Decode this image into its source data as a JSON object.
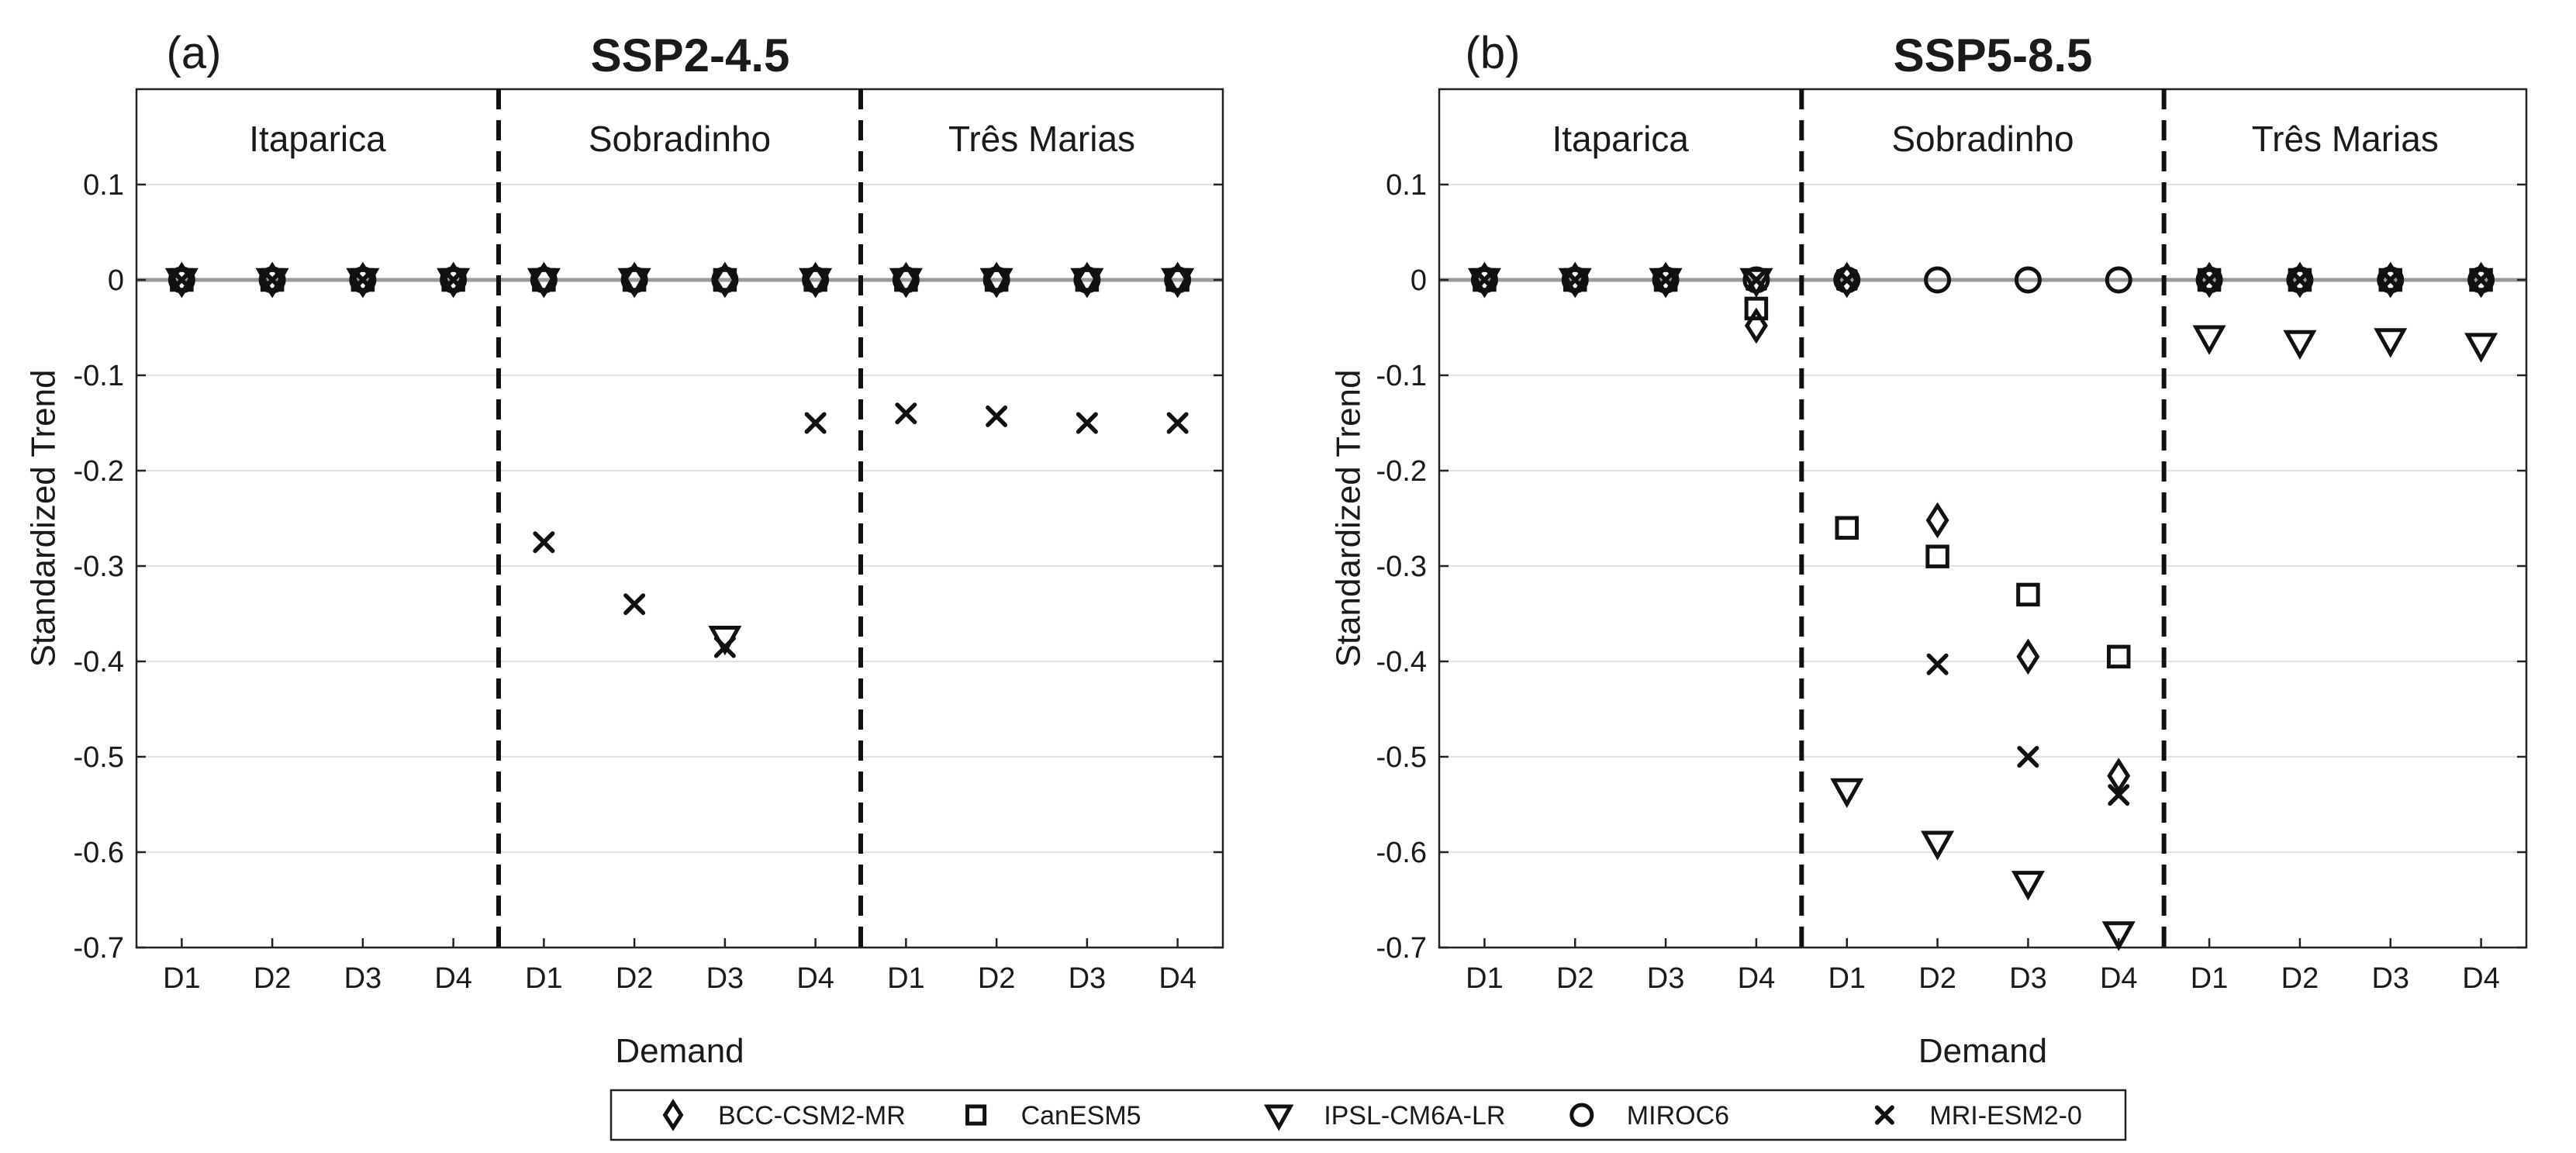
{
  "chart_data": [
    {
      "type": "scatter",
      "panel_label": "(a)",
      "title": "SSP2-4.5",
      "xlabel": "Demand",
      "ylabel": "Standardized Trend",
      "ylim": [
        -0.7,
        0.2
      ],
      "yticks": [
        "0.1",
        "0",
        "-0.1",
        "-0.2",
        "-0.3",
        "-0.4",
        "-0.5",
        "-0.6",
        "-0.7"
      ],
      "grid": true,
      "regions": [
        "Itaparica",
        "Sobradinho",
        "Três Marias"
      ],
      "categories": [
        "D1",
        "D2",
        "D3",
        "D4",
        "D1",
        "D2",
        "D3",
        "D4",
        "D1",
        "D2",
        "D3",
        "D4"
      ],
      "series": [
        {
          "name": "BCC-CSM2-MR",
          "marker": "diamond",
          "values": [
            0,
            0,
            0,
            0,
            0,
            0,
            0,
            0,
            0,
            0,
            0,
            0
          ]
        },
        {
          "name": "CanESM5",
          "marker": "square",
          "values": [
            0,
            0,
            0,
            0,
            0,
            0,
            0,
            0,
            0,
            0,
            0,
            0
          ]
        },
        {
          "name": "IPSL-CM6A-LR",
          "marker": "triangle-down",
          "values": [
            0,
            0,
            0,
            0,
            0,
            0,
            -0.375,
            0,
            0,
            0,
            0,
            0
          ]
        },
        {
          "name": "MIROC6",
          "marker": "circle",
          "values": [
            0,
            0,
            0,
            0,
            0,
            0,
            0,
            0,
            0,
            0,
            0,
            0
          ]
        },
        {
          "name": "MRI-ESM2-0",
          "marker": "x",
          "values": [
            0,
            0,
            0,
            0,
            -0.275,
            -0.34,
            -0.385,
            -0.15,
            -0.14,
            -0.143,
            -0.15,
            -0.15
          ]
        }
      ]
    },
    {
      "type": "scatter",
      "panel_label": "(b)",
      "title": "SSP5-8.5",
      "xlabel": "Demand",
      "ylabel": "Standardized Trend",
      "ylim": [
        -0.7,
        0.2
      ],
      "yticks": [
        "0.1",
        "0",
        "-0.1",
        "-0.2",
        "-0.3",
        "-0.4",
        "-0.5",
        "-0.6",
        "-0.7"
      ],
      "grid": true,
      "regions": [
        "Itaparica",
        "Sobradinho",
        "Três Marias"
      ],
      "categories": [
        "D1",
        "D2",
        "D3",
        "D4",
        "D1",
        "D2",
        "D3",
        "D4",
        "D1",
        "D2",
        "D3",
        "D4"
      ],
      "series": [
        {
          "name": "BCC-CSM2-MR",
          "marker": "diamond",
          "values": [
            0,
            0,
            0,
            -0.048,
            0,
            -0.252,
            -0.395,
            -0.52,
            0,
            0,
            0,
            0
          ]
        },
        {
          "name": "CanESM5",
          "marker": "square",
          "values": [
            0,
            0,
            0,
            -0.03,
            -0.26,
            -0.29,
            -0.33,
            -0.395,
            0,
            0,
            0,
            0
          ]
        },
        {
          "name": "IPSL-CM6A-LR",
          "marker": "triangle-down",
          "values": [
            0,
            0,
            0,
            0,
            -0.535,
            -0.59,
            -0.632,
            -0.685,
            -0.06,
            -0.065,
            -0.063,
            -0.068
          ]
        },
        {
          "name": "MIROC6",
          "marker": "circle",
          "values": [
            0,
            0,
            0,
            0,
            0,
            0,
            0,
            0,
            0,
            0,
            0,
            0
          ]
        },
        {
          "name": "MRI-ESM2-0",
          "marker": "x",
          "values": [
            0,
            0,
            0,
            0,
            0,
            -0.403,
            -0.5,
            -0.54,
            0,
            0,
            0,
            0
          ]
        }
      ]
    }
  ],
  "legend": {
    "placement": "bottom-center",
    "entries": [
      {
        "label": "BCC-CSM2-MR",
        "marker": "diamond"
      },
      {
        "label": "CanESM5",
        "marker": "square"
      },
      {
        "label": "IPSL-CM6A-LR",
        "marker": "triangle-down"
      },
      {
        "label": "MIROC6",
        "marker": "circle"
      },
      {
        "label": "MRI-ESM2-0",
        "marker": "x"
      }
    ]
  }
}
